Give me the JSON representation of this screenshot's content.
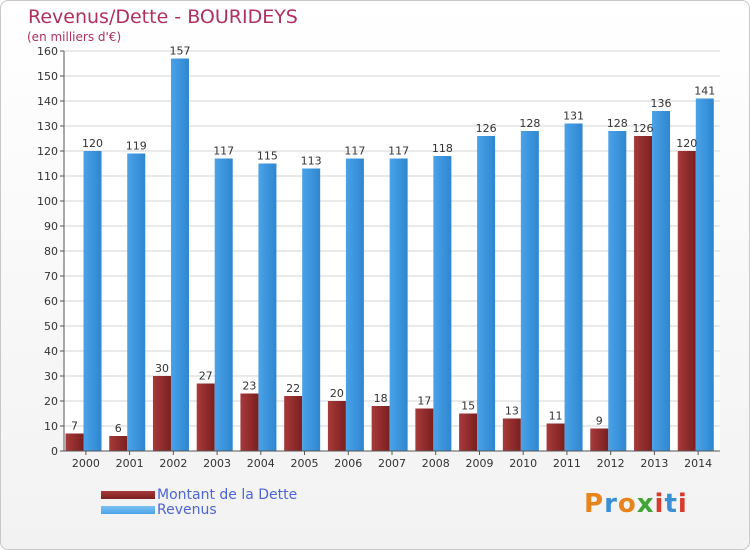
{
  "title": "Revenus/Dette - BOURIDEYS",
  "subtitle": "(en milliers d'€)",
  "logo": {
    "text": "Proxiti",
    "colors": [
      "#e8841c",
      "#3a8fd6",
      "#e8841c",
      "#3fa535",
      "#d83a2e",
      "#3a8fd6",
      "#d83a2e"
    ]
  },
  "colors": {
    "dette": "#7a1f1f",
    "revenus": "#4aa3e8",
    "title": "#b03060",
    "legend_text": "#4f64d8"
  },
  "chart_data": {
    "type": "bar",
    "categories": [
      "2000",
      "2001",
      "2002",
      "2003",
      "2004",
      "2005",
      "2006",
      "2007",
      "2008",
      "2009",
      "2010",
      "2011",
      "2012",
      "2013",
      "2014"
    ],
    "series": [
      {
        "name": "Montant de la Dette",
        "values": [
          7,
          6,
          30,
          27,
          23,
          22,
          20,
          18,
          17,
          15,
          13,
          11,
          9,
          126,
          120
        ]
      },
      {
        "name": "Revenus",
        "values": [
          120,
          119,
          157,
          117,
          115,
          113,
          117,
          117,
          118,
          126,
          128,
          131,
          128,
          136,
          141
        ]
      }
    ],
    "ylim": [
      0,
      160
    ],
    "yticks": [
      0,
      10,
      20,
      30,
      40,
      50,
      60,
      70,
      80,
      90,
      100,
      110,
      120,
      130,
      140,
      150,
      160
    ],
    "grid": true,
    "legend_position": "bottom-left"
  }
}
